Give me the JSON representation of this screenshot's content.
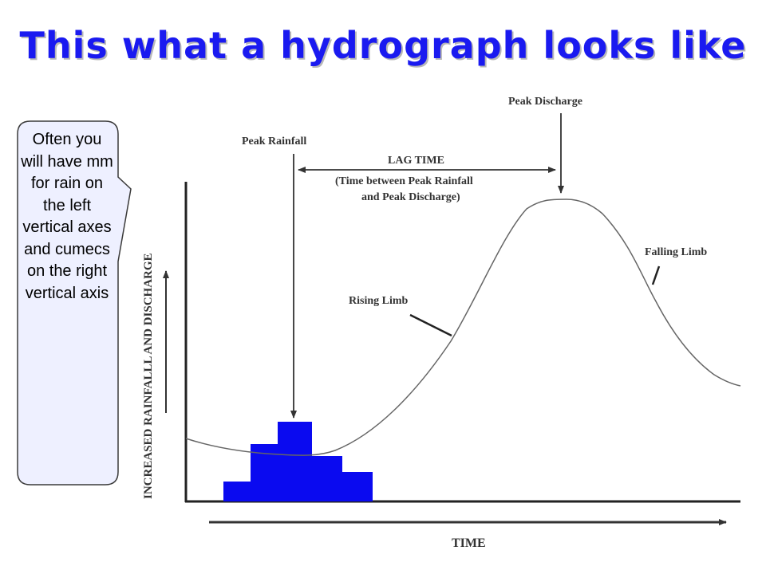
{
  "slide": {
    "title": "This what a hydrograph looks like"
  },
  "callout": {
    "text": "Often you will have mm for rain on the left vertical axes and cumecs on the right vertical axis"
  },
  "diagram": {
    "y_axis_label": "INCREASED RAINFALLL AND DISCHARGE",
    "x_axis_label": "TIME",
    "peak_rainfall_label": "Peak Rainfall",
    "peak_discharge_label": "Peak Discharge",
    "lag_time_title": "LAG TIME",
    "lag_time_desc_1": "(Time between Peak Rainfall",
    "lag_time_desc_2": "and Peak Discharge)",
    "rising_limb_label": "Rising Limb",
    "falling_limb_label": "Falling Limb",
    "colors": {
      "rainfall_bars": "#0a0af0",
      "title": "#1a1af0",
      "hydrograph_line": "#666666"
    }
  }
}
